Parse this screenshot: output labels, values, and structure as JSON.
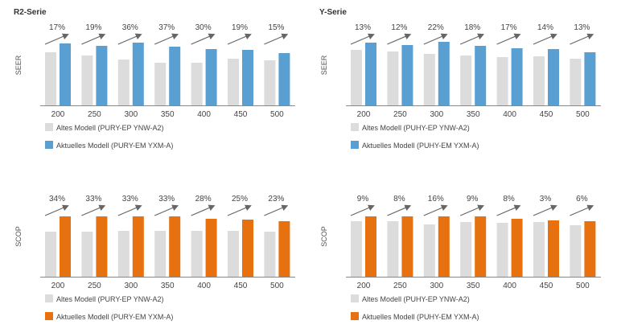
{
  "colors": {
    "old": "#dcdcdc",
    "seer": "#5a9fd2",
    "scop": "#e8710f",
    "arrow": "#666666",
    "axis": "#888888"
  },
  "chart_data": [
    {
      "type": "bar",
      "title": "R2-Serie",
      "ylabel": "SEER",
      "xlabel": "",
      "ylim": [
        0,
        100
      ],
      "value_unit": "relative (unlabeled axis)",
      "categories": [
        "200",
        "250",
        "300",
        "350",
        "400",
        "450",
        "500"
      ],
      "series": [
        {
          "name": "Altes Modell (PURY-EP YNW-A2)",
          "color_key": "old",
          "values": [
            66,
            62,
            57,
            53,
            53,
            58,
            56
          ]
        },
        {
          "name": "Aktuelles Modell (PURY-EM YXM-A)",
          "color_key": "seer",
          "values": [
            77,
            74,
            78,
            73,
            70,
            69,
            65
          ]
        }
      ],
      "annotations": [
        "17%",
        "19%",
        "36%",
        "37%",
        "30%",
        "19%",
        "15%"
      ]
    },
    {
      "type": "bar",
      "title": "Y-Serie",
      "ylabel": "SEER",
      "xlabel": "",
      "ylim": [
        0,
        100
      ],
      "value_unit": "relative (unlabeled axis)",
      "categories": [
        "200",
        "250",
        "300",
        "350",
        "400",
        "450",
        "500"
      ],
      "series": [
        {
          "name": "Altes Modell (PUHY-EP YNW-A2)",
          "color_key": "old",
          "values": [
            69,
            67,
            64,
            62,
            60,
            61,
            58
          ]
        },
        {
          "name": "Aktuelles Modell (PUHY-EM YXM-A)",
          "color_key": "seer",
          "values": [
            78,
            75,
            79,
            74,
            71,
            70,
            66
          ]
        }
      ],
      "annotations": [
        "13%",
        "12%",
        "22%",
        "18%",
        "17%",
        "14%",
        "13%"
      ]
    },
    {
      "type": "bar",
      "title": "",
      "ylabel": "SCOP",
      "xlabel": "",
      "ylim": [
        0,
        100
      ],
      "value_unit": "relative (unlabeled axis)",
      "categories": [
        "200",
        "250",
        "300",
        "350",
        "400",
        "450",
        "500"
      ],
      "series": [
        {
          "name": "Altes Modell (PURY-EP YNW-A2)",
          "color_key": "old",
          "values": [
            56,
            56,
            57,
            57,
            57,
            57,
            56
          ]
        },
        {
          "name": "Aktuelles Modell (PURY-EM YXM-A)",
          "color_key": "scop",
          "values": [
            75,
            75,
            75,
            75,
            72,
            71,
            69
          ]
        }
      ],
      "annotations": [
        "34%",
        "33%",
        "33%",
        "33%",
        "28%",
        "25%",
        "23%"
      ]
    },
    {
      "type": "bar",
      "title": "",
      "ylabel": "SCOP",
      "xlabel": "",
      "ylim": [
        0,
        100
      ],
      "value_unit": "relative (unlabeled axis)",
      "categories": [
        "200",
        "250",
        "300",
        "350",
        "400",
        "450",
        "500"
      ],
      "series": [
        {
          "name": "Altes Modell (PUHY-EP YNW-A2)",
          "color_key": "old",
          "values": [
            69,
            69,
            65,
            68,
            67,
            68,
            64
          ]
        },
        {
          "name": "Aktuelles Modell (PUHY-EM YXM-A)",
          "color_key": "scop",
          "values": [
            75,
            75,
            75,
            75,
            72,
            70,
            69
          ]
        }
      ],
      "annotations": [
        "9%",
        "8%",
        "16%",
        "9%",
        "8%",
        "3%",
        "6%"
      ]
    }
  ]
}
